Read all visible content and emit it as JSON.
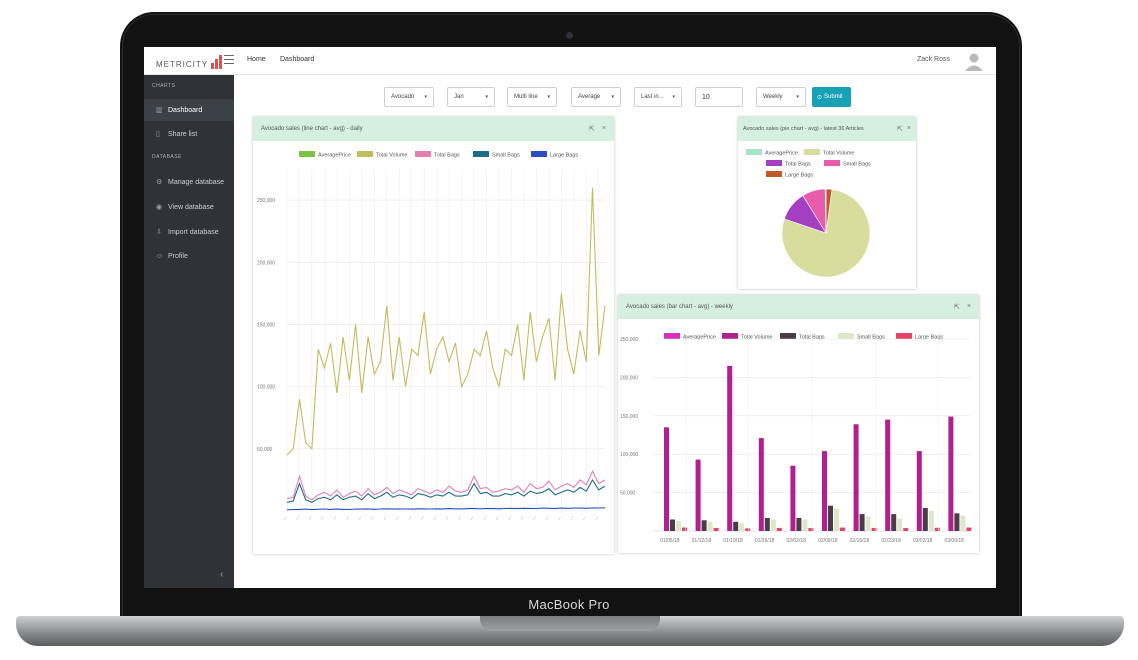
{
  "device": {
    "label": "MacBook Pro"
  },
  "topbar": {
    "brand": "METRICITY",
    "nav": [
      "Home",
      "Dashboard"
    ],
    "user_name": "Zack Ross"
  },
  "sidebar": {
    "sections": [
      {
        "title": "CHARTS",
        "items": [
          {
            "label": "Dashboard",
            "icon": "bar-chart-icon",
            "active": true
          },
          {
            "label": "Share list",
            "icon": "bookmark-icon",
            "active": false
          }
        ]
      },
      {
        "title": "DATABASE",
        "items": [
          {
            "label": "Manage database",
            "icon": "gear-icon"
          },
          {
            "label": "View database",
            "icon": "eye-icon"
          },
          {
            "label": "Import database",
            "icon": "import-icon"
          },
          {
            "label": "Profile",
            "icon": "user-icon"
          }
        ]
      }
    ]
  },
  "filters": {
    "selects": [
      "Avocado",
      "Jan",
      "Multi line",
      "Average",
      "Last in ..",
      "Weekly"
    ],
    "number_value": "10",
    "submit_label": "Submit"
  },
  "panels": {
    "line": {
      "title": "Avocado sales (line chart - avg) - daily",
      "tools": [
        "⇱",
        "×"
      ]
    },
    "pie": {
      "title": "Avocado sales (pie chart - avg) - latest 36 Articles",
      "tools": [
        "⇱",
        "×"
      ]
    },
    "bar": {
      "title": "Avocado sales (bar chart - avg) - weekly",
      "tools": [
        "⇱",
        "×"
      ]
    }
  },
  "chart_data": [
    {
      "type": "line",
      "title": "Avocado sales (line chart - avg) - daily",
      "y_ticks": [
        "50,000",
        "100,000",
        "150,000",
        "200,000",
        "250,000"
      ],
      "ylim": [
        0,
        275000
      ],
      "grid": true,
      "legend_position": "top",
      "series": [
        {
          "name": "AveragePrice",
          "color": "#7cc242",
          "values": []
        },
        {
          "name": "Total Volume",
          "color": "#bfbd5c",
          "approx_values": [
            45000,
            50000,
            90000,
            55000,
            50000,
            130000,
            115000,
            135000,
            95000,
            140000,
            105000,
            150000,
            95000,
            140000,
            110000,
            120000,
            165000,
            105000,
            140000,
            100000,
            130000,
            125000,
            160000,
            110000,
            130000,
            140000,
            120000,
            135000,
            100000,
            110000,
            130000,
            125000,
            145000,
            115000,
            100000,
            130000,
            125000,
            150000,
            105000,
            160000,
            120000,
            140000,
            155000,
            105000,
            175000,
            130000,
            110000,
            145000,
            120000,
            260000,
            125000,
            165000
          ]
        },
        {
          "name": "Total Bags",
          "color": "#e47fb5",
          "approx_values": [
            10000,
            11000,
            28000,
            12000,
            9000,
            13000,
            15000,
            12000,
            17000,
            11000,
            14000,
            16000,
            12000,
            18000,
            13000,
            15000,
            19000,
            14000,
            17000,
            15000,
            13000,
            18000,
            16000,
            14000,
            17000,
            15000,
            20000,
            16000,
            15000,
            17000,
            28000,
            18000,
            19000,
            15000,
            16000,
            18000,
            17000,
            20000,
            15000,
            22000,
            18000,
            19000,
            24000,
            17000,
            20000,
            22000,
            19000,
            25000,
            21000,
            32000,
            22000,
            25000
          ]
        },
        {
          "name": "Small Bags",
          "color": "#1d6d8a",
          "approx_values": [
            7000,
            8000,
            22000,
            9000,
            7000,
            10000,
            11000,
            9000,
            13000,
            9000,
            11000,
            12000,
            9000,
            14000,
            10000,
            12000,
            15000,
            11000,
            13000,
            12000,
            10000,
            14000,
            13000,
            11000,
            13000,
            12000,
            15000,
            12000,
            12000,
            13000,
            22000,
            14000,
            15000,
            12000,
            12000,
            14000,
            13000,
            15000,
            12000,
            16000,
            14000,
            15000,
            18000,
            13000,
            15000,
            17000,
            15000,
            19000,
            16000,
            25000,
            17000,
            20000
          ]
        },
        {
          "name": "Large Bags",
          "color": "#2a4fc4",
          "approx_values": [
            1000,
            1200,
            1300,
            1500,
            1100,
            1400,
            1600,
            1300,
            1500,
            1400,
            1200,
            1600,
            1500,
            1700,
            1400,
            1600,
            1800,
            1500,
            1700,
            1600,
            1500,
            1800,
            1700,
            1600,
            1800,
            1700,
            1900,
            1800,
            1700,
            1900,
            2000,
            1800,
            2000,
            1900,
            1800,
            2000,
            2100,
            1900,
            2200,
            2100,
            2000,
            2300,
            2200,
            2100,
            2300,
            2200,
            2400,
            2300,
            2200,
            2500,
            2400,
            2600
          ]
        }
      ]
    },
    {
      "type": "pie",
      "title": "Avocado sales (pie chart - avg) - latest 36 Articles",
      "legend_position": "top",
      "slices": [
        {
          "name": "AveragePrice",
          "color": "#a5e6c4",
          "value": 0.3
        },
        {
          "name": "Total Volume",
          "color": "#d8dc9c",
          "value": 78
        },
        {
          "name": "Total Bags",
          "color": "#a43fc2",
          "value": 11
        },
        {
          "name": "Small Bags",
          "color": "#e85cab",
          "value": 8.5
        },
        {
          "name": "Large Bags",
          "color": "#c05a2a",
          "value": 2.2
        }
      ]
    },
    {
      "type": "bar",
      "title": "Avocado sales (bar chart - avg) - weekly",
      "y_ticks": [
        "50,000",
        "100,000",
        "150,000",
        "200,000",
        "250,000"
      ],
      "ylim": [
        0,
        250000
      ],
      "grid": true,
      "legend_position": "top",
      "categories": [
        "01/05/18",
        "01/12/18",
        "01/19/18",
        "01/26/18",
        "02/02/18",
        "02/09/18",
        "02/16/18",
        "02/23/18",
        "03/02/18",
        "03/09/18"
      ],
      "series": [
        {
          "name": "AveragePrice",
          "color": "#d82fbf",
          "values": [
            0,
            0,
            0,
            0,
            0,
            0,
            0,
            0,
            0,
            0
          ]
        },
        {
          "name": "Total Volume",
          "color": "#b0208f",
          "values": [
            135000,
            93000,
            215000,
            121000,
            85000,
            104000,
            139000,
            145000,
            104000,
            149000
          ]
        },
        {
          "name": "Total Bags",
          "color": "#4d3a4a",
          "values": [
            15000,
            14000,
            12000,
            17000,
            17000,
            33000,
            22000,
            22000,
            30000,
            23000
          ]
        },
        {
          "name": "Small Bags",
          "color": "#dde8c7",
          "values": [
            13000,
            12000,
            10000,
            15000,
            15000,
            29000,
            19000,
            16000,
            26000,
            20000
          ]
        },
        {
          "name": "Large Bags",
          "color": "#e8436a",
          "values": [
            4500,
            4000,
            3500,
            4000,
            4000,
            4500,
            4000,
            3800,
            4200,
            4500
          ]
        }
      ]
    }
  ]
}
